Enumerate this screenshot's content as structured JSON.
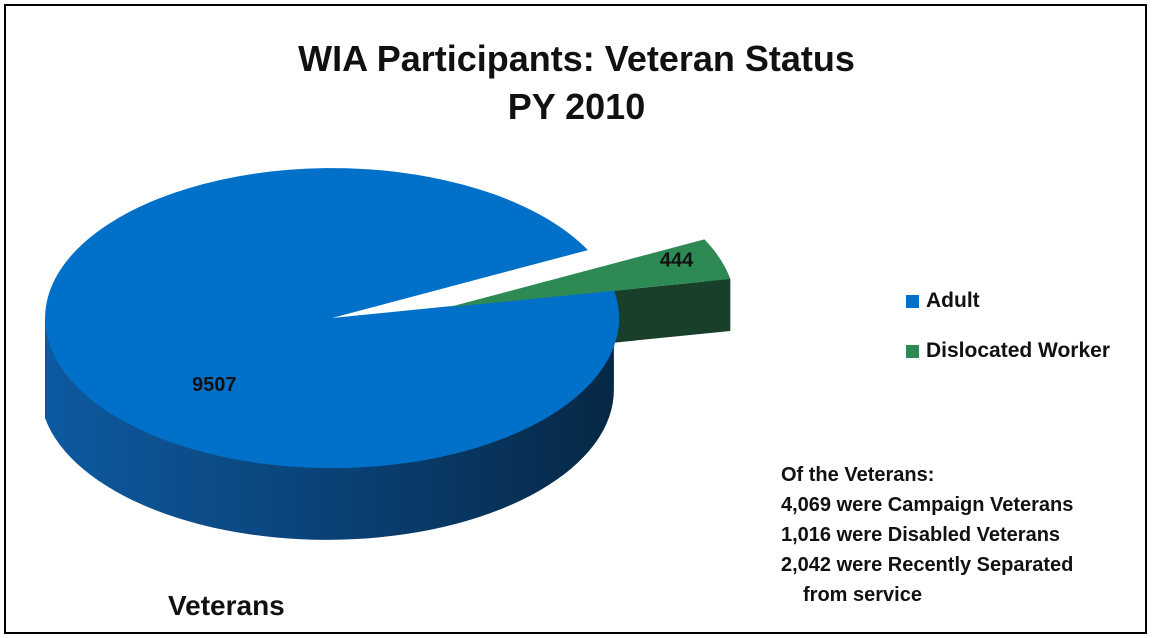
{
  "chart_data": {
    "type": "pie",
    "title": "WIA Participants: Veteran Status",
    "subtitle": "PY 2010",
    "caption": "Veterans",
    "slices": [
      {
        "name": "Adult",
        "value": 9507,
        "label": "9507",
        "color": "#0070c8"
      },
      {
        "name": "Dislocated Worker",
        "value": 444,
        "label": "444",
        "color": "#2e8a55"
      }
    ],
    "legend_position": "right",
    "style": "3d-exploded"
  },
  "notes": {
    "heading": "Of the Veterans:",
    "lines": [
      "4,069 were Campaign Veterans",
      "1,016 were Disabled Veterans",
      "2,042 were Recently Separated"
    ],
    "continuation": "from service"
  },
  "colors": {
    "adult_side": "#0b3d6e",
    "dislocated_side": "#173f2a"
  }
}
